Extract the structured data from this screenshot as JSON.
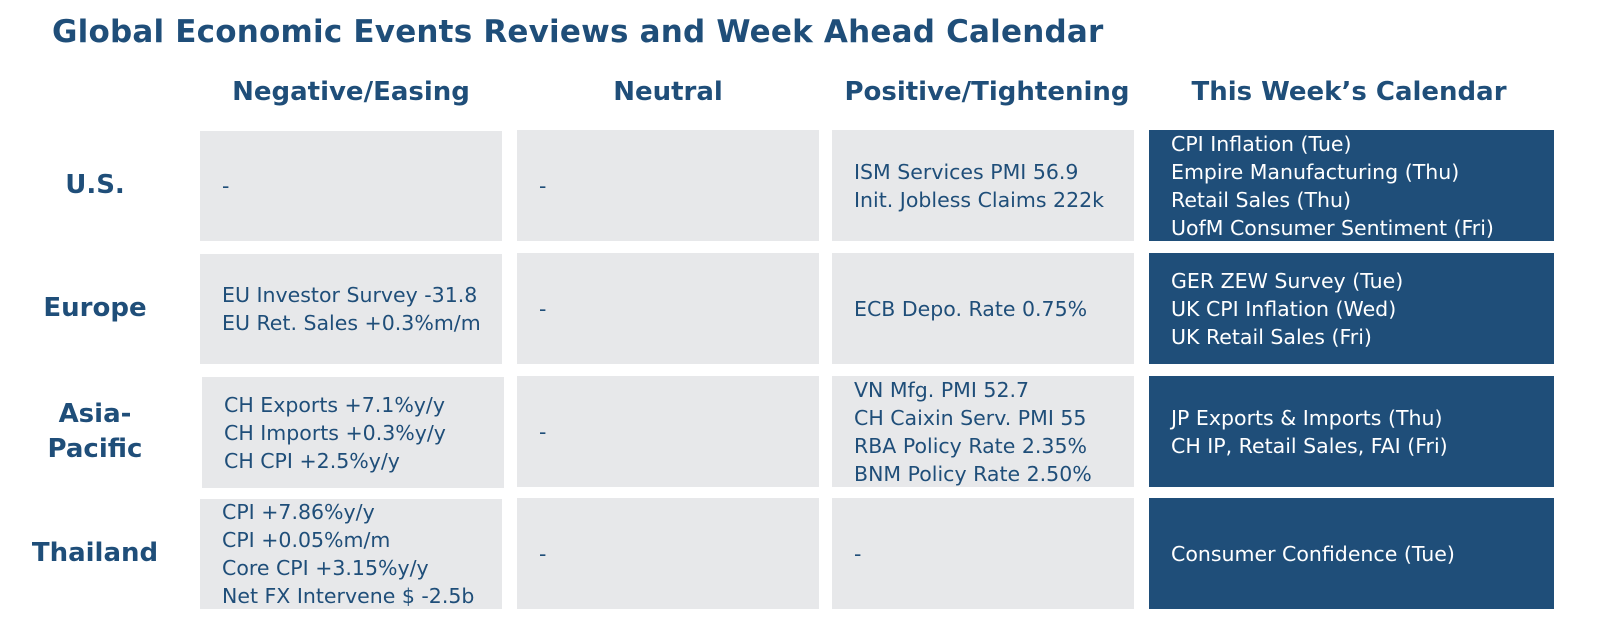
{
  "title": "Global Economic Events Reviews and Week Ahead Calendar",
  "columns": {
    "negative": "Negative/Easing",
    "neutral": "Neutral",
    "positive": "Positive/Tightening",
    "calendar": "This Week’s Calendar"
  },
  "rows": [
    {
      "label": "U.S.",
      "negative": [
        "-"
      ],
      "neutral": [
        "-"
      ],
      "positive": [
        "ISM Services PMI 56.9",
        "Init. Jobless Claims 222k"
      ],
      "calendar": [
        "CPI Inflation (Tue)",
        "Empire Manufacturing (Thu)",
        "Retail Sales (Thu)",
        "UofM Consumer Sentiment (Fri)"
      ]
    },
    {
      "label": "Europe",
      "negative": [
        "EU Investor Survey -31.8",
        "EU Ret. Sales +0.3%m/m"
      ],
      "neutral": [
        "-"
      ],
      "positive": [
        "ECB Depo. Rate 0.75%"
      ],
      "calendar": [
        "GER ZEW Survey (Tue)",
        "UK CPI Inflation (Wed)",
        "UK Retail Sales (Fri)"
      ]
    },
    {
      "label_lines": [
        "Asia-",
        "Pacific"
      ],
      "negative": [
        "CH Exports +7.1%y/y",
        "CH Imports +0.3%y/y",
        "CH CPI +2.5%y/y"
      ],
      "neutral": [
        "-"
      ],
      "positive": [
        "VN Mfg. PMI 52.7",
        "CH Caixin Serv. PMI 55",
        "RBA Policy Rate 2.35%",
        "BNM Policy Rate 2.50%"
      ],
      "calendar": [
        "JP Exports & Imports (Thu)",
        "CH IP, Retail Sales, FAI (Fri)"
      ]
    },
    {
      "label": "Thailand",
      "negative": [
        "CPI +7.86%y/y",
        "CPI +0.05%m/m",
        "Core CPI +3.15%y/y",
        "Net FX Intervene $ -2.5b"
      ],
      "neutral": [
        "-"
      ],
      "positive": [
        "-"
      ],
      "calendar": [
        "Consumer Confidence (Tue)"
      ]
    }
  ],
  "colors": {
    "brand_navy": "#1f4e79",
    "cell_gray": "#e7e8ea",
    "calendar_text": "#ffffff"
  }
}
